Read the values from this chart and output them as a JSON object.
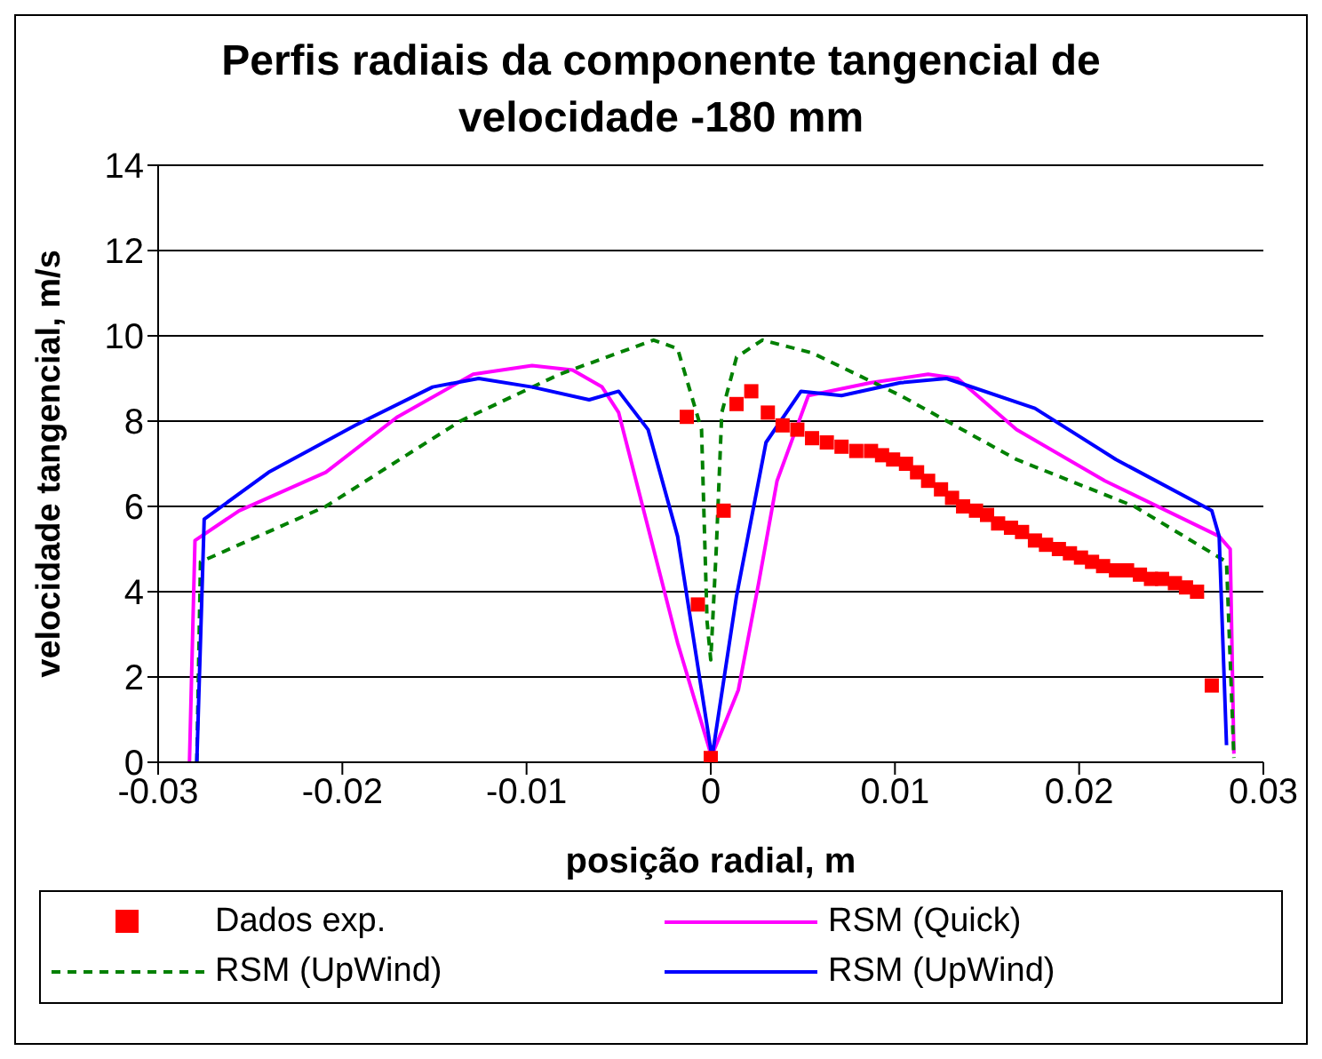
{
  "chart_data": {
    "type": "line",
    "title": "Perfis radiais da componente tangencial de velocidade -180 mm",
    "xlabel": "posição radial, m",
    "ylabel": "velocidade tangencial, m/s",
    "xlim": [
      -0.03,
      0.03
    ],
    "xticks": [
      -0.03,
      -0.02,
      -0.01,
      0,
      0.01,
      0.02,
      0.03
    ],
    "ylim": [
      0,
      14
    ],
    "yticks": [
      0,
      2,
      4,
      6,
      8,
      10,
      12,
      14
    ],
    "grid": "y",
    "legend": "bottom",
    "series": [
      {
        "name": "Dados exp.",
        "type": "scatter",
        "marker": "square",
        "color": "#ff0000",
        "x": [
          -0.0013,
          -0.0007,
          0,
          0.0007,
          0.0014,
          0.0022,
          0.0031,
          0.0039,
          0.0047,
          0.0055,
          0.0063,
          0.0071,
          0.0079,
          0.0087,
          0.0093,
          0.0099,
          0.0106,
          0.0112,
          0.0118,
          0.0125,
          0.0131,
          0.0137,
          0.0144,
          0.015,
          0.0156,
          0.0163,
          0.0169,
          0.0176,
          0.0182,
          0.0189,
          0.0195,
          0.0201,
          0.0207,
          0.0213,
          0.022,
          0.0226,
          0.0233,
          0.0239,
          0.0245,
          0.0252,
          0.0258,
          0.0264,
          0.0272
        ],
        "values": [
          8.1,
          3.7,
          0.1,
          5.9,
          8.4,
          8.7,
          8.2,
          7.9,
          7.8,
          7.6,
          7.5,
          7.4,
          7.3,
          7.3,
          7.2,
          7.1,
          7,
          6.8,
          6.6,
          6.4,
          6.2,
          6,
          5.9,
          5.8,
          5.6,
          5.5,
          5.4,
          5.2,
          5.1,
          5,
          4.9,
          4.8,
          4.7,
          4.6,
          4.5,
          4.5,
          4.4,
          4.3,
          4.3,
          4.2,
          4.1,
          4,
          1.8
        ]
      },
      {
        "name": "RSM (Quick)",
        "marker": "none",
        "line_style": "solid",
        "color": "#ff00ff",
        "x": [
          -0.0283,
          -0.028,
          -0.0256,
          -0.0209,
          -0.017,
          -0.0129,
          -0.0097,
          -0.0075,
          -0.0059,
          -0.005,
          -0.0034,
          -0.0018,
          0,
          0.0001,
          0.0015,
          0.0026,
          0.0036,
          0.0053,
          0.0087,
          0.0118,
          0.0134,
          0.0166,
          0.0214,
          0.0276,
          0.0282,
          0.0284
        ],
        "values": [
          0,
          5.2,
          5.9,
          6.8,
          8.1,
          9.1,
          9.3,
          9.2,
          8.8,
          8.2,
          5.5,
          2.8,
          0.2,
          0.2,
          1.7,
          4.2,
          6.6,
          8.6,
          8.9,
          9.1,
          9,
          7.8,
          6.6,
          5.3,
          5,
          0.2
        ]
      },
      {
        "name": "RSM (UpWind)",
        "marker": "none",
        "line_style": "dashed",
        "color": "#008000",
        "x": [
          -0.0279,
          -0.0277,
          -0.0209,
          -0.0136,
          -0.0082,
          -0.0031,
          -0.0018,
          -0.0005,
          -0.0002,
          0,
          0.0003,
          0.0006,
          0.0014,
          0.0028,
          0.0055,
          0.0103,
          0.0166,
          0.023,
          0.028,
          0.0284
        ],
        "values": [
          0,
          4.7,
          6,
          8,
          9.1,
          9.9,
          9.7,
          7.8,
          3.3,
          2.4,
          5,
          8.2,
          9.5,
          9.9,
          9.6,
          8.6,
          7.1,
          6,
          4.7,
          0.1
        ]
      },
      {
        "name": "RSM (UpWind)",
        "marker": "none",
        "line_style": "solid",
        "color": "#0000ff",
        "x": [
          -0.0279,
          -0.0275,
          -0.024,
          -0.0193,
          -0.0151,
          -0.0126,
          -0.0097,
          -0.0066,
          -0.005,
          -0.0034,
          -0.0018,
          0,
          0.0001,
          0.0014,
          0.003,
          0.0049,
          0.0071,
          0.0103,
          0.0128,
          0.0176,
          0.022,
          0.0272,
          0.0276,
          0.028
        ],
        "values": [
          0,
          5.7,
          6.8,
          7.9,
          8.8,
          9,
          8.8,
          8.5,
          8.7,
          7.8,
          5.3,
          0.3,
          0.2,
          3.9,
          7.5,
          8.7,
          8.6,
          8.9,
          9,
          8.3,
          7.1,
          5.9,
          5.3,
          0.4
        ]
      }
    ]
  }
}
